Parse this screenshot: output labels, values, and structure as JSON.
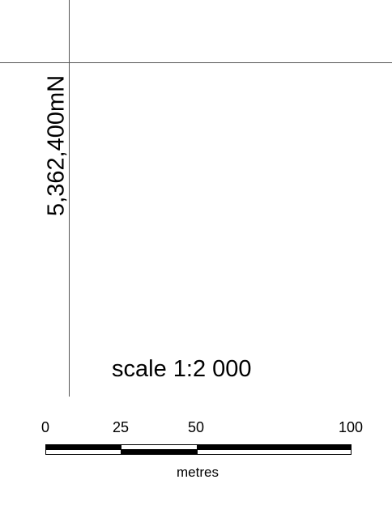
{
  "grid": {
    "northing_label": "5,362,400mN"
  },
  "scale": {
    "text": "scale 1:2 000",
    "units": "metres",
    "ticks": [
      "0",
      "25",
      "50",
      "100"
    ]
  },
  "colors": {
    "grid_line": "#555555",
    "bar_fill": "#000000",
    "bar_empty": "#ffffff"
  }
}
